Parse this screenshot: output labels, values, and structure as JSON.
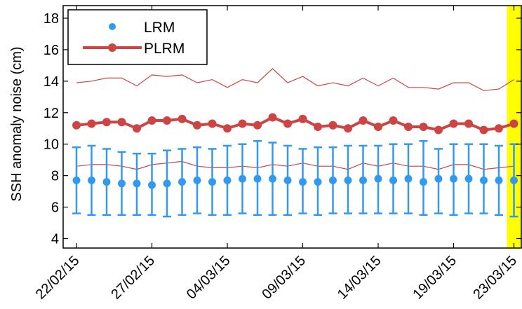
{
  "chart_data": {
    "type": "line",
    "title": "",
    "xlabel": "",
    "ylabel": "SSH anomaly noise (cm)",
    "ylim": [
      3.4,
      18.8
    ],
    "yticks": [
      4,
      6,
      8,
      10,
      12,
      14,
      16,
      18
    ],
    "xticks": [
      "22/02/15",
      "27/02/15",
      "04/03/15",
      "09/03/15",
      "14/03/15",
      "19/03/15",
      "23/03/15"
    ],
    "xtick_index": [
      0,
      5,
      10,
      15,
      20,
      25,
      29
    ],
    "grid": false,
    "legend_position": "top-left",
    "highlight": {
      "from_index": 29,
      "color": "#ffff00"
    },
    "series": [
      {
        "name": "LRM",
        "color": "#3399ee",
        "marker": "dot",
        "values": [
          7.7,
          7.7,
          7.6,
          7.5,
          7.5,
          7.4,
          7.5,
          7.6,
          7.7,
          7.6,
          7.7,
          7.8,
          7.8,
          7.8,
          7.7,
          7.6,
          7.6,
          7.7,
          7.7,
          7.7,
          7.8,
          7.7,
          7.8,
          7.6,
          7.8,
          7.8,
          7.8,
          7.7,
          7.7,
          7.7
        ],
        "error_upper": [
          9.8,
          9.9,
          9.7,
          9.5,
          9.4,
          9.4,
          9.6,
          9.7,
          9.8,
          9.7,
          9.9,
          10.0,
          10.2,
          10.1,
          9.9,
          9.7,
          9.8,
          9.8,
          9.9,
          9.9,
          9.9,
          10.0,
          10.0,
          10.2,
          9.7,
          10.0,
          10.0,
          10.0,
          9.9,
          10.0
        ],
        "error_lower": [
          5.6,
          5.5,
          5.5,
          5.5,
          5.5,
          5.5,
          5.4,
          5.5,
          5.6,
          5.5,
          5.5,
          5.6,
          5.5,
          5.5,
          5.5,
          5.6,
          5.5,
          5.6,
          5.6,
          5.6,
          5.6,
          5.6,
          5.6,
          5.5,
          5.6,
          5.5,
          5.6,
          5.6,
          5.5,
          5.4
        ]
      },
      {
        "name": "PLRM",
        "color": "#cc4444",
        "marker": "dot",
        "values": [
          11.2,
          11.3,
          11.4,
          11.4,
          11.0,
          11.5,
          11.5,
          11.6,
          11.2,
          11.3,
          11.0,
          11.3,
          11.2,
          11.7,
          11.3,
          11.6,
          11.1,
          11.2,
          11.0,
          11.5,
          11.1,
          11.5,
          11.1,
          11.1,
          10.9,
          11.3,
          11.3,
          10.9,
          11.0,
          11.3
        ],
        "band_upper": [
          13.9,
          14.0,
          14.2,
          14.2,
          13.7,
          14.4,
          14.3,
          14.4,
          13.9,
          14.1,
          13.6,
          14.1,
          13.9,
          14.8,
          13.9,
          14.3,
          13.7,
          13.9,
          13.7,
          14.2,
          13.7,
          14.2,
          13.6,
          13.6,
          13.5,
          13.9,
          13.9,
          13.4,
          13.5,
          14.1
        ],
        "band_lower": [
          8.6,
          8.7,
          8.7,
          8.6,
          8.4,
          8.7,
          8.8,
          8.9,
          8.6,
          8.5,
          8.5,
          8.6,
          8.5,
          8.7,
          8.6,
          8.8,
          8.6,
          8.6,
          8.4,
          8.8,
          8.6,
          8.8,
          8.6,
          8.6,
          8.4,
          8.7,
          8.7,
          8.4,
          8.5,
          8.6
        ]
      }
    ]
  }
}
